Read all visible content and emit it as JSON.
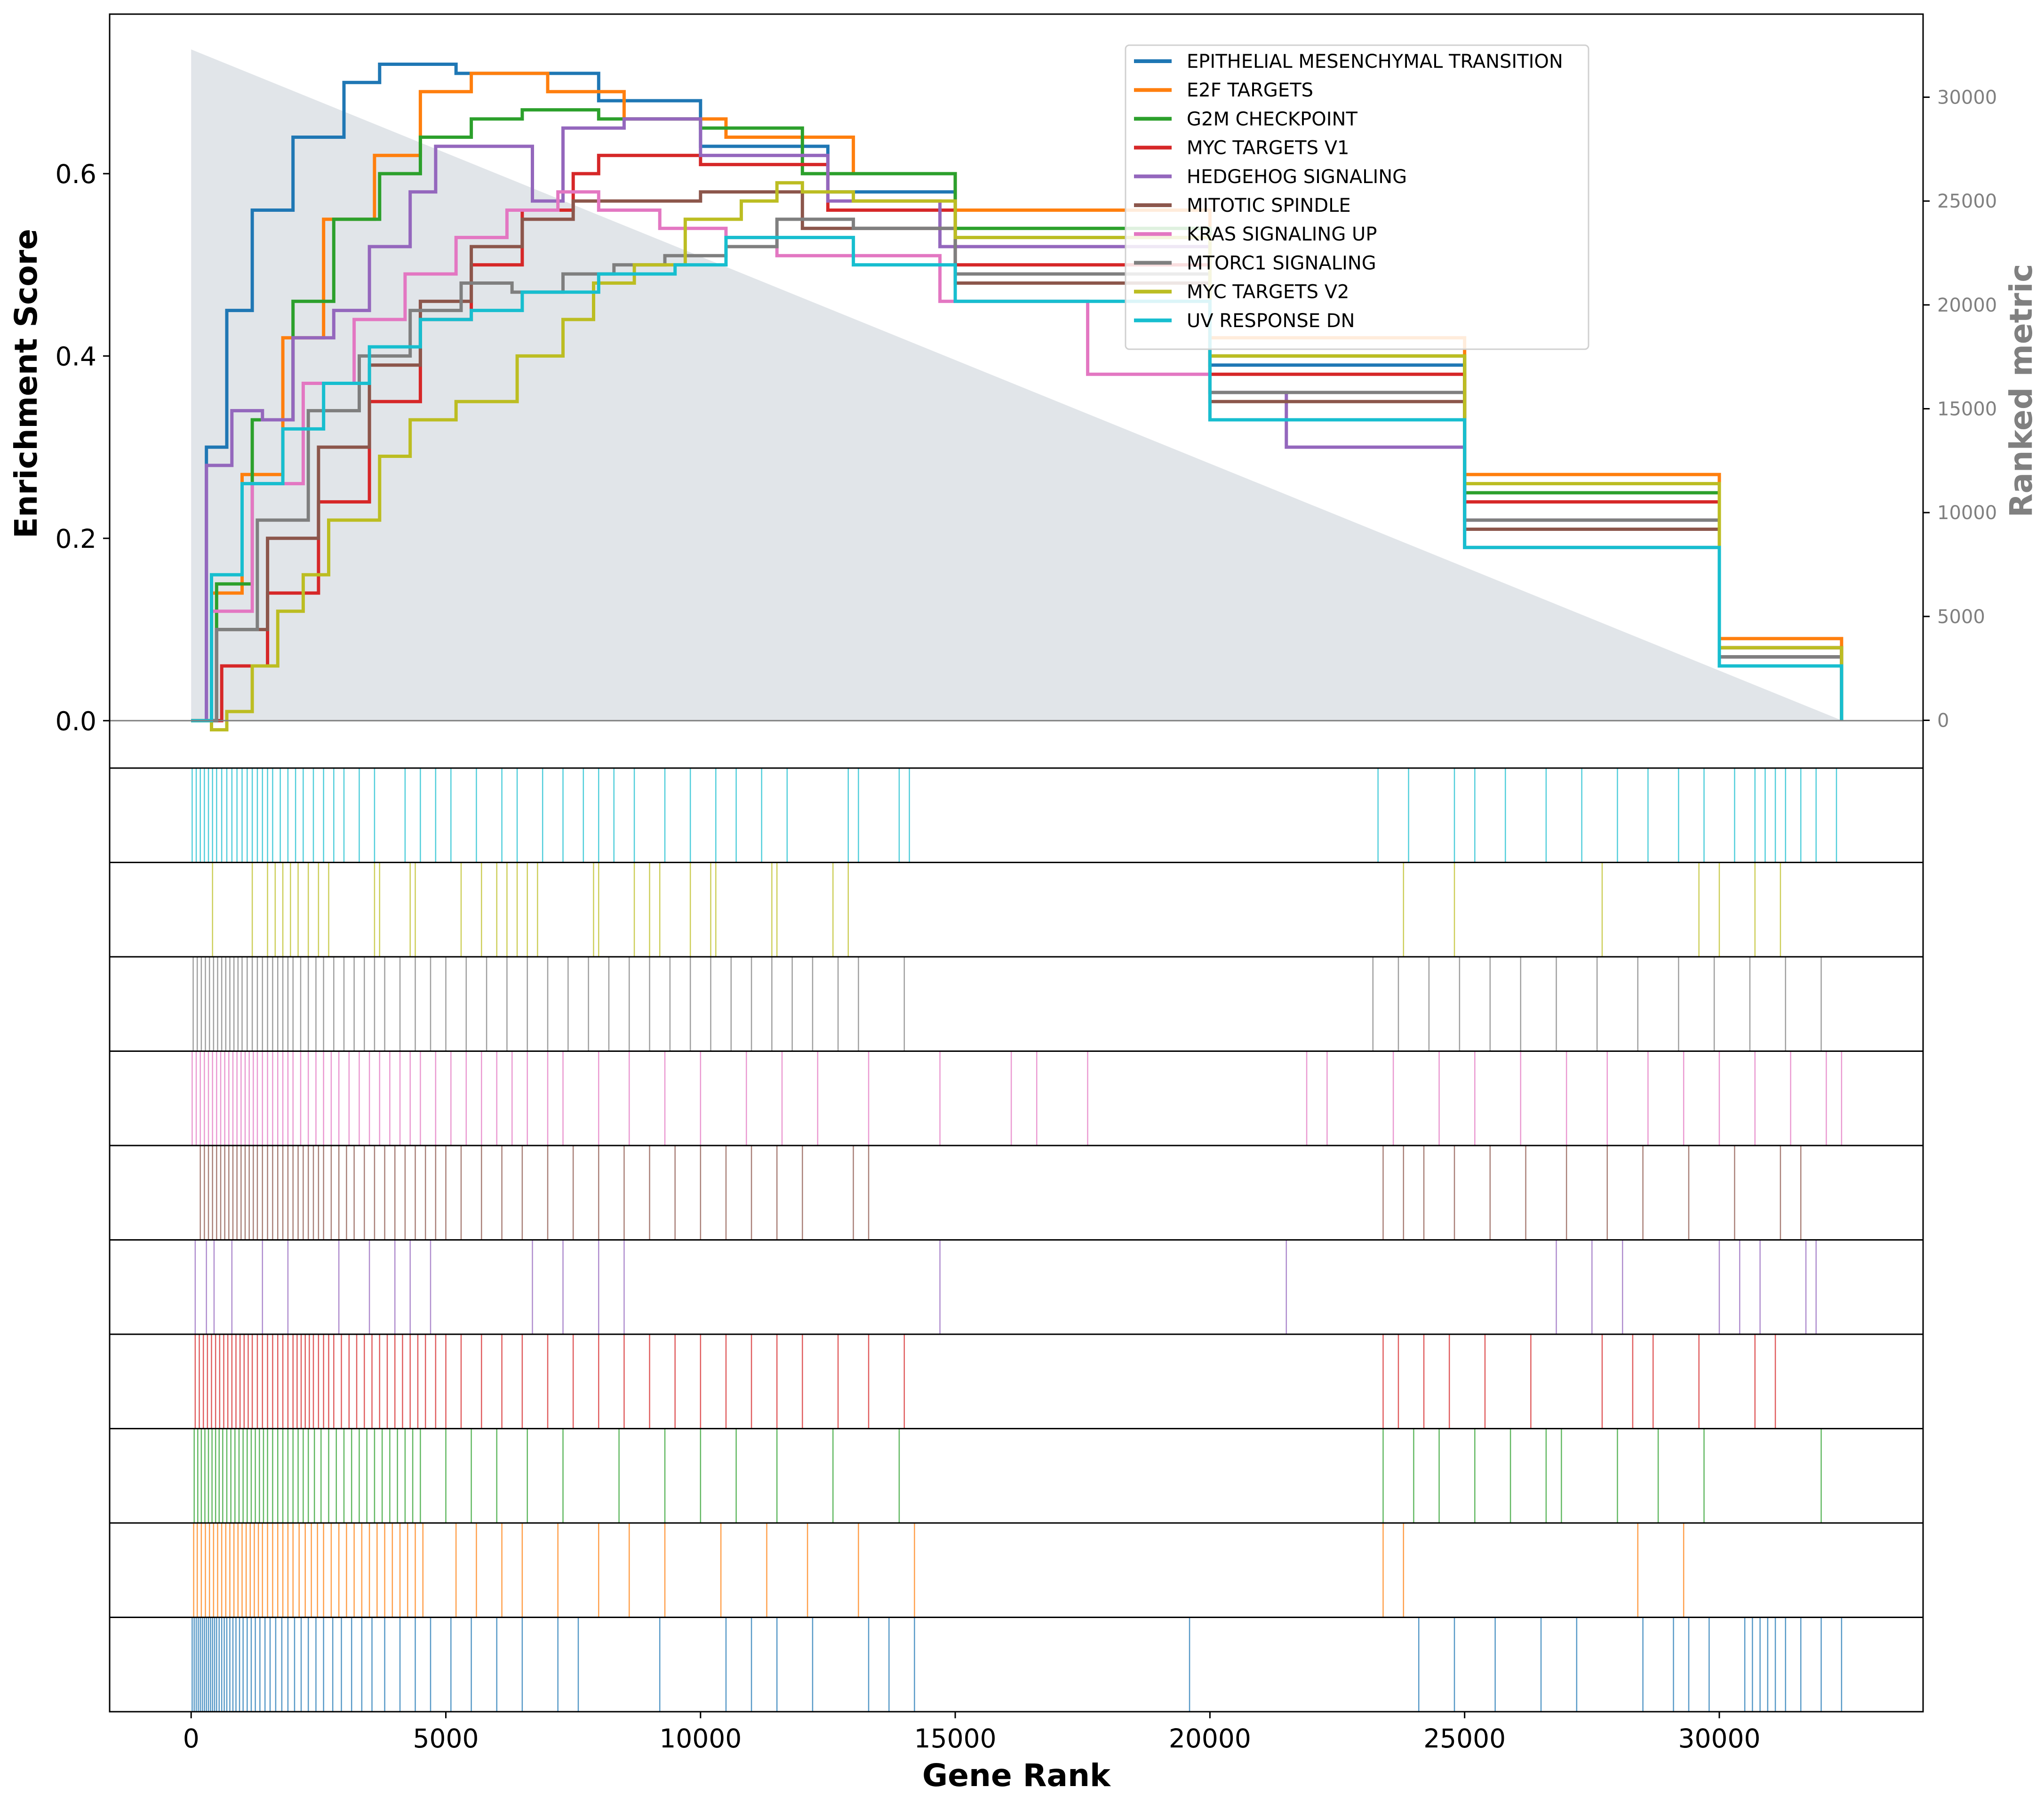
{
  "chart_data": {
    "type": "line",
    "xlabel": "Gene Rank",
    "ylabel": "Enrichment Score",
    "ylabel_right": "Ranked metric",
    "xlim": [
      -1600,
      34000
    ],
    "ylim": [
      -0.052,
      0.775
    ],
    "ylim_right": [
      -2300,
      34000
    ],
    "x_ticks": [
      0,
      5000,
      10000,
      15000,
      20000,
      25000,
      30000
    ],
    "y_ticks": [
      0.0,
      0.2,
      0.4,
      0.6
    ],
    "y_right_ticks": [
      0,
      5000,
      10000,
      15000,
      20000,
      25000,
      30000
    ],
    "n_genes": 32400,
    "ranked_metric": {
      "x": [
        0,
        32400
      ],
      "values": [
        32300,
        0
      ],
      "color": "#d5dbe1"
    },
    "legend_position": "top-right",
    "grid": false,
    "series": [
      {
        "name": "EPITHELIAL MESENCHYMAL TRANSITION",
        "color": "#1f77b4",
        "x": [
          0,
          300,
          700,
          1200,
          2000,
          3000,
          3700,
          5200,
          6500,
          8000,
          10000,
          12500,
          15000,
          20000,
          25000,
          30000,
          32400
        ],
        "y": [
          0,
          0.3,
          0.45,
          0.56,
          0.64,
          0.7,
          0.72,
          0.71,
          0.71,
          0.68,
          0.63,
          0.58,
          0.52,
          0.39,
          0.25,
          0.07,
          0
        ],
        "hits": [
          20,
          60,
          100,
          140,
          180,
          220,
          260,
          300,
          340,
          380,
          420,
          460,
          500,
          550,
          600,
          650,
          700,
          760,
          820,
          880,
          950,
          1020,
          1100,
          1180,
          1260,
          1350,
          1450,
          1550,
          1660,
          1780,
          1900,
          2030,
          2160,
          2300,
          2450,
          2600,
          2780,
          2950,
          3150,
          3350,
          3550,
          3800,
          4100,
          4400,
          4700,
          5100,
          5500,
          6000,
          6500,
          7200,
          7600,
          9200,
          10500,
          11000,
          11500,
          12200,
          13300,
          13700,
          14200,
          19600,
          24100,
          24800,
          25600,
          26500,
          27200,
          28500,
          29100,
          29400,
          29800,
          30500,
          30650,
          30800,
          30950,
          31100,
          31300,
          31600,
          32000,
          32400
        ]
      },
      {
        "name": "E2F TARGETS",
        "color": "#ff7f0e",
        "x": [
          0,
          400,
          1000,
          1800,
          2600,
          3600,
          4500,
          5500,
          7000,
          8500,
          10500,
          13000,
          15000,
          20000,
          25000,
          30000,
          32400
        ],
        "y": [
          0,
          0.14,
          0.27,
          0.42,
          0.55,
          0.62,
          0.69,
          0.71,
          0.69,
          0.66,
          0.64,
          0.6,
          0.56,
          0.42,
          0.27,
          0.09,
          0
        ],
        "hits": [
          50,
          120,
          200,
          280,
          360,
          440,
          520,
          600,
          680,
          760,
          840,
          920,
          1000,
          1080,
          1160,
          1240,
          1320,
          1400,
          1500,
          1600,
          1700,
          1800,
          1900,
          2000,
          2120,
          2240,
          2360,
          2480,
          2600,
          2750,
          2900,
          3050,
          3200,
          3350,
          3500,
          3650,
          3800,
          3950,
          4100,
          4250,
          4400,
          4550,
          5200,
          5600,
          6100,
          6500,
          7200,
          8000,
          8600,
          9300,
          10400,
          11300,
          12100,
          13100,
          14200,
          23400,
          23800,
          28400,
          29300
        ]
      },
      {
        "name": "G2M CHECKPOINT",
        "color": "#2ca02c",
        "x": [
          0,
          500,
          1200,
          2000,
          2800,
          3700,
          4500,
          5500,
          6500,
          8000,
          10000,
          12000,
          15000,
          20000,
          25000,
          30000,
          32400
        ],
        "y": [
          0,
          0.15,
          0.33,
          0.46,
          0.55,
          0.6,
          0.64,
          0.66,
          0.67,
          0.66,
          0.65,
          0.6,
          0.54,
          0.4,
          0.25,
          0.08,
          0
        ],
        "hits": [
          60,
          130,
          200,
          270,
          340,
          410,
          480,
          550,
          620,
          700,
          780,
          860,
          940,
          1020,
          1100,
          1180,
          1260,
          1340,
          1420,
          1500,
          1600,
          1700,
          1800,
          1900,
          2000,
          2100,
          2200,
          2300,
          2420,
          2550,
          2700,
          2850,
          3000,
          3150,
          3300,
          3450,
          3600,
          3750,
          3900,
          4050,
          4200,
          4350,
          4500,
          5000,
          5500,
          6000,
          6600,
          7300,
          8400,
          9300,
          10000,
          10700,
          11500,
          12600,
          13900,
          23400,
          24000,
          24500,
          25200,
          25900,
          26600,
          26900,
          28000,
          28800,
          29700,
          32000
        ]
      },
      {
        "name": "MYC TARGETS V1",
        "color": "#d62728",
        "x": [
          0,
          600,
          1500,
          2500,
          3500,
          4500,
          5500,
          6500,
          7500,
          8000,
          10000,
          12500,
          15000,
          20000,
          25000,
          30000,
          32400
        ],
        "y": [
          0,
          0.06,
          0.14,
          0.24,
          0.35,
          0.44,
          0.5,
          0.56,
          0.6,
          0.62,
          0.61,
          0.56,
          0.5,
          0.38,
          0.24,
          0.08,
          0
        ],
        "hits": [
          80,
          160,
          240,
          320,
          400,
          480,
          560,
          640,
          720,
          800,
          880,
          960,
          1040,
          1120,
          1200,
          1300,
          1400,
          1500,
          1600,
          1700,
          1800,
          1900,
          2000,
          2080,
          2160,
          2240,
          2320,
          2400,
          2500,
          2600,
          2700,
          2800,
          2950,
          3100,
          3250,
          3400,
          3550,
          3700,
          3850,
          4000,
          4150,
          4300,
          4450,
          4600,
          4800,
          5000,
          5300,
          5700,
          6100,
          6500,
          7000,
          7500,
          8000,
          8500,
          9000,
          9500,
          10000,
          10500,
          11000,
          11500,
          12000,
          12700,
          13300,
          14000,
          23400,
          23700,
          24200,
          24700,
          25400,
          26300,
          27700,
          28300,
          28700,
          29600,
          30700,
          31100
        ]
      },
      {
        "name": "HEDGEHOG SIGNALING",
        "color": "#9467bd",
        "x": [
          0,
          300,
          800,
          1400,
          2000,
          2800,
          3500,
          4300,
          4800,
          6700,
          7300,
          8500,
          10000,
          12500,
          14700,
          20000,
          21500,
          25000,
          30000,
          32400
        ],
        "y": [
          0,
          0.28,
          0.34,
          0.33,
          0.42,
          0.45,
          0.52,
          0.58,
          0.63,
          0.57,
          0.65,
          0.66,
          0.62,
          0.57,
          0.52,
          0.36,
          0.3,
          0.22,
          0.07,
          0
        ],
        "hits": [
          80,
          300,
          450,
          800,
          1400,
          1900,
          2900,
          3500,
          4000,
          4300,
          4700,
          6700,
          7300,
          8000,
          8500,
          14700,
          21500,
          26800,
          27500,
          28100,
          30000,
          30400,
          30800,
          31700,
          31900
        ]
      },
      {
        "name": "MITOTIC SPINDLE",
        "color": "#8c564b",
        "x": [
          0,
          500,
          1500,
          2500,
          3500,
          4500,
          5500,
          6500,
          7500,
          9000,
          10000,
          12000,
          15000,
          20000,
          25000,
          30000,
          32400
        ],
        "y": [
          0,
          0.1,
          0.2,
          0.3,
          0.39,
          0.46,
          0.52,
          0.55,
          0.57,
          0.57,
          0.58,
          0.54,
          0.48,
          0.35,
          0.21,
          0.07,
          0
        ],
        "hits": [
          180,
          260,
          340,
          420,
          500,
          580,
          660,
          740,
          820,
          900,
          980,
          1060,
          1140,
          1220,
          1300,
          1400,
          1500,
          1600,
          1700,
          1800,
          1900,
          2000,
          2100,
          2200,
          2300,
          2400,
          2500,
          2600,
          2750,
          2900,
          3050,
          3200,
          3400,
          3600,
          3800,
          4000,
          4200,
          4400,
          4600,
          4800,
          5000,
          5300,
          5700,
          6100,
          6500,
          7000,
          7500,
          8000,
          8500,
          9000,
          9500,
          10000,
          10500,
          11000,
          11500,
          12000,
          13000,
          13300,
          23400,
          23800,
          24200,
          24800,
          25500,
          26200,
          27000,
          27800,
          28500,
          29400,
          30300,
          31200,
          31600
        ]
      },
      {
        "name": "KRAS SIGNALING UP",
        "color": "#e377c2",
        "x": [
          0,
          400,
          1200,
          2200,
          3200,
          4200,
          5200,
          6200,
          7200,
          8000,
          9200,
          10500,
          11500,
          14700,
          17600,
          20000,
          25000,
          30000,
          32400
        ],
        "y": [
          0,
          0.12,
          0.26,
          0.37,
          0.44,
          0.49,
          0.53,
          0.56,
          0.58,
          0.56,
          0.54,
          0.53,
          0.51,
          0.46,
          0.38,
          0.33,
          0.19,
          0.06,
          0
        ],
        "hits": [
          20,
          100,
          180,
          260,
          340,
          420,
          500,
          580,
          660,
          740,
          820,
          900,
          980,
          1060,
          1140,
          1220,
          1300,
          1400,
          1500,
          1600,
          1700,
          1800,
          1900,
          2000,
          2150,
          2300,
          2450,
          2600,
          2750,
          2900,
          3100,
          3300,
          3500,
          3700,
          3900,
          4100,
          4300,
          4500,
          4800,
          5100,
          5400,
          5700,
          6000,
          6300,
          6600,
          7000,
          7300,
          8000,
          8600,
          9300,
          10000,
          10900,
          11600,
          12300,
          13300,
          14700,
          16100,
          16600,
          17600,
          21900,
          22300,
          23600,
          24500,
          25200,
          26100,
          27000,
          27800,
          28600,
          29300,
          30000,
          30700,
          31400,
          32100,
          32400
        ]
      },
      {
        "name": "MTORC1 SIGNALING",
        "color": "#7f7f7f",
        "x": [
          0,
          500,
          1300,
          2300,
          3300,
          4300,
          5300,
          6300,
          7300,
          8300,
          9300,
          10500,
          11500,
          13000,
          15000,
          20000,
          25000,
          30000,
          32400
        ],
        "y": [
          0,
          0.1,
          0.22,
          0.34,
          0.4,
          0.45,
          0.48,
          0.47,
          0.49,
          0.5,
          0.51,
          0.52,
          0.55,
          0.54,
          0.49,
          0.36,
          0.22,
          0.07,
          0
        ],
        "hits": [
          40,
          120,
          200,
          280,
          360,
          440,
          520,
          600,
          680,
          760,
          840,
          920,
          1000,
          1100,
          1200,
          1300,
          1400,
          1500,
          1600,
          1700,
          1800,
          1900,
          2000,
          2150,
          2300,
          2450,
          2600,
          2800,
          3000,
          3200,
          3400,
          3600,
          3800,
          4100,
          4400,
          4700,
          5000,
          5400,
          5800,
          6200,
          6600,
          7000,
          7400,
          7800,
          8200,
          8600,
          9000,
          9400,
          9800,
          10200,
          10600,
          11000,
          11400,
          11800,
          12200,
          12700,
          13100,
          14000,
          23200,
          23700,
          24300,
          24900,
          25500,
          26100,
          26800,
          27600,
          28400,
          29200,
          29900,
          30600,
          31300,
          32000
        ]
      },
      {
        "name": "MYC TARGETS V2",
        "color": "#bcbd22",
        "x": [
          0,
          400,
          700,
          1200,
          1700,
          2200,
          2700,
          3700,
          4300,
          5200,
          6400,
          7300,
          7900,
          8700,
          9700,
          10800,
          11500,
          12000,
          13000,
          15000,
          20000,
          25000,
          30000,
          32400
        ],
        "y": [
          0,
          -0.01,
          0.01,
          0.06,
          0.12,
          0.16,
          0.22,
          0.29,
          0.33,
          0.35,
          0.4,
          0.44,
          0.48,
          0.5,
          0.55,
          0.57,
          0.59,
          0.58,
          0.57,
          0.53,
          0.4,
          0.26,
          0.08,
          0
        ],
        "hits": [
          420,
          1200,
          1500,
          1650,
          1800,
          1950,
          2100,
          2300,
          2500,
          2700,
          3600,
          3700,
          4300,
          4400,
          5300,
          5700,
          6000,
          6200,
          6400,
          6600,
          6800,
          7900,
          8000,
          8700,
          9000,
          9200,
          9800,
          10200,
          10300,
          11400,
          11500,
          12600,
          12900,
          23800,
          24800,
          27700,
          29600,
          30000,
          30700,
          31200
        ]
      },
      {
        "name": "UV RESPONSE DN",
        "color": "#17becf",
        "x": [
          0,
          400,
          1000,
          1800,
          2600,
          3500,
          4500,
          5500,
          6500,
          8000,
          9500,
          10500,
          11500,
          13000,
          15000,
          20000,
          25000,
          30000,
          32400
        ],
        "y": [
          0,
          0.16,
          0.26,
          0.32,
          0.37,
          0.41,
          0.44,
          0.45,
          0.47,
          0.49,
          0.5,
          0.53,
          0.53,
          0.5,
          0.46,
          0.33,
          0.19,
          0.06,
          0
        ],
        "hits": [
          20,
          100,
          180,
          260,
          340,
          420,
          500,
          600,
          700,
          800,
          900,
          1000,
          1100,
          1200,
          1300,
          1400,
          1500,
          1600,
          1750,
          1900,
          2050,
          2200,
          2400,
          2600,
          2800,
          3000,
          3300,
          3600,
          4200,
          4500,
          4800,
          5100,
          5600,
          6100,
          6400,
          6900,
          7300,
          7700,
          8000,
          8300,
          8700,
          9300,
          9800,
          10300,
          10700,
          11200,
          11700,
          12900,
          13100,
          13900,
          14100,
          23300,
          23900,
          24800,
          25200,
          25800,
          26600,
          27300,
          28000,
          28600,
          29200,
          29700,
          30300,
          30700,
          30900,
          31100,
          31300,
          31600,
          31900,
          32300
        ]
      }
    ]
  }
}
